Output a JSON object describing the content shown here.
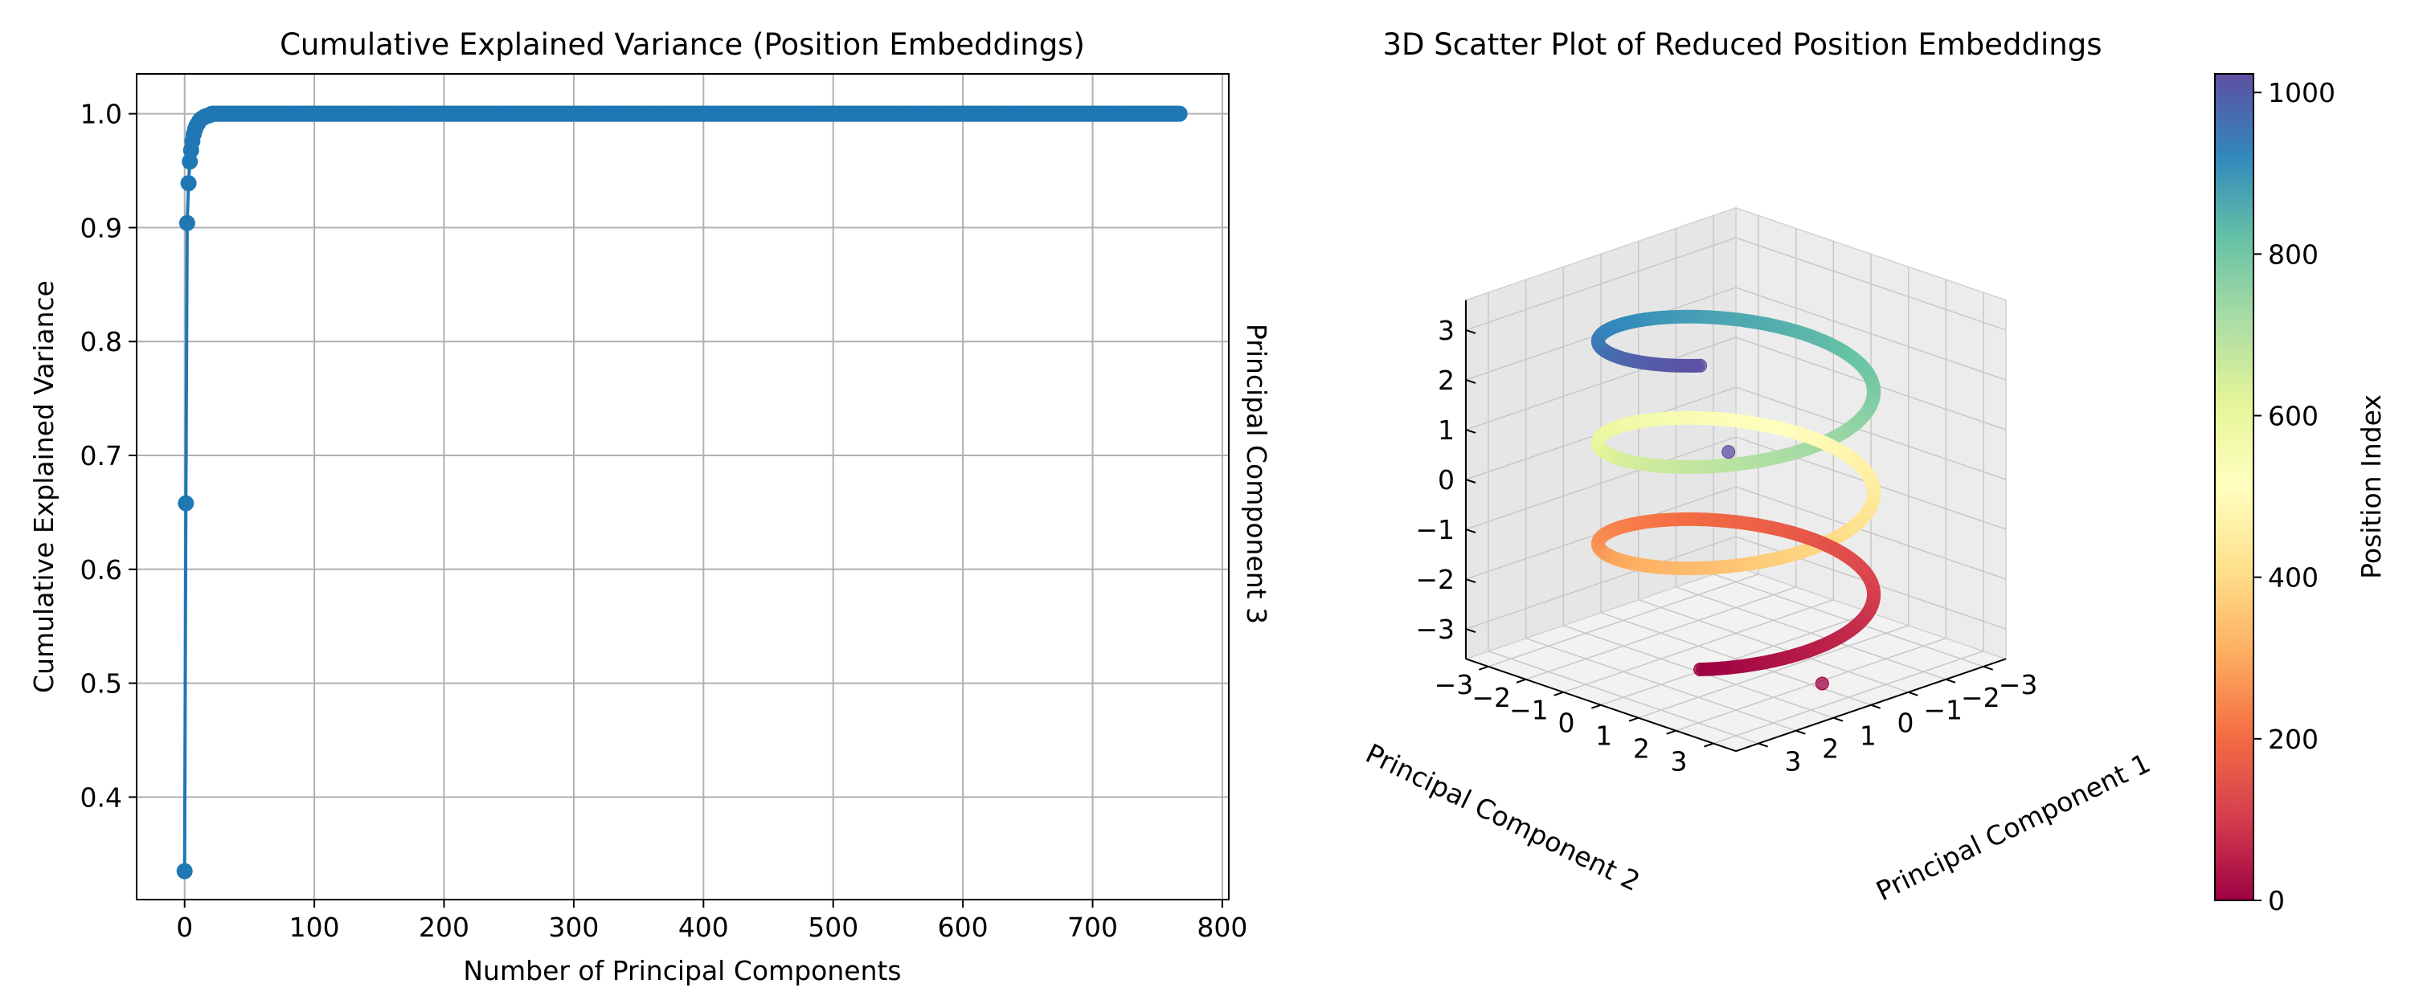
{
  "chart_data": [
    {
      "type": "line",
      "title": "Cumulative Explained Variance (Position Embeddings)",
      "xlabel": "Number of Principal Components",
      "ylabel": "Cumulative Explained Variance",
      "xlim": [
        -37,
        805
      ],
      "ylim": [
        0.31,
        1.035
      ],
      "xticks": [
        0,
        100,
        200,
        300,
        400,
        500,
        600,
        700,
        800
      ],
      "xtick_labels": [
        "0",
        "100",
        "200",
        "300",
        "400",
        "500",
        "600",
        "700",
        "800"
      ],
      "yticks": [
        0.4,
        0.5,
        0.6,
        0.7,
        0.8,
        0.9,
        1.0
      ],
      "ytick_labels": [
        "0.4",
        "0.5",
        "0.6",
        "0.7",
        "0.8",
        "0.9",
        "1.0"
      ],
      "grid": true,
      "marker": "circle",
      "series": [
        {
          "color": "#1f77b4",
          "x_start": 0,
          "x_end": 767,
          "head_values": [
            0.335,
            0.658,
            0.904,
            0.939,
            0.958,
            0.968,
            0.976,
            0.982,
            0.986,
            0.989,
            0.991,
            0.993,
            0.9945,
            0.9955,
            0.9963,
            0.997,
            0.9976,
            0.998,
            0.9984,
            0.9987,
            0.999
          ],
          "tail_value": 1.0
        }
      ]
    },
    {
      "type": "scatter",
      "subtype": "3d",
      "title": "3D Scatter Plot of Reduced Position Embeddings",
      "xlabel": "Principal Component 1",
      "ylabel": "Principal Component 2",
      "zlabel": "Principal Component 3",
      "xlim": [
        -3.6,
        3.6
      ],
      "ylim": [
        -3.6,
        3.6
      ],
      "zlim": [
        -3.6,
        3.6
      ],
      "xticks": [
        -3,
        -2,
        -1,
        0,
        1,
        2,
        3
      ],
      "xtick_labels": [
        "−3",
        "−2",
        "−1",
        "0",
        "1",
        "2",
        "3"
      ],
      "yticks": [
        -3,
        -2,
        -1,
        0,
        1,
        2,
        3
      ],
      "ytick_labels": [
        "−3",
        "−2",
        "−1",
        "0",
        "1",
        "2",
        "3"
      ],
      "zticks": [
        -3,
        -2,
        -1,
        0,
        1,
        2,
        3
      ],
      "ztick_labels": [
        "−3",
        "−2",
        "−1",
        "0",
        "1",
        "2",
        "3"
      ],
      "view": {
        "elev": 20,
        "azim": 45
      },
      "grid": true,
      "colormap": "Spectral",
      "color_by": "position index",
      "helix": {
        "points": 1024,
        "radius": 2.6,
        "turns": 3,
        "z_start": -2.9,
        "z_end": 3.2,
        "phase_deg": 30
      },
      "outliers": [
        {
          "index": 1,
          "x": 0.2,
          "y": 2.5,
          "z": -3.4
        },
        {
          "index": 1023,
          "x": -0.2,
          "y": -0.4,
          "z": 0.4
        }
      ],
      "colorbar": {
        "label": "Position Index",
        "range": [
          0,
          1023
        ],
        "ticks": [
          0,
          200,
          400,
          600,
          800,
          1000
        ],
        "tick_labels": [
          "0",
          "200",
          "400",
          "600",
          "800",
          "1000"
        ],
        "placement": "right"
      }
    }
  ]
}
